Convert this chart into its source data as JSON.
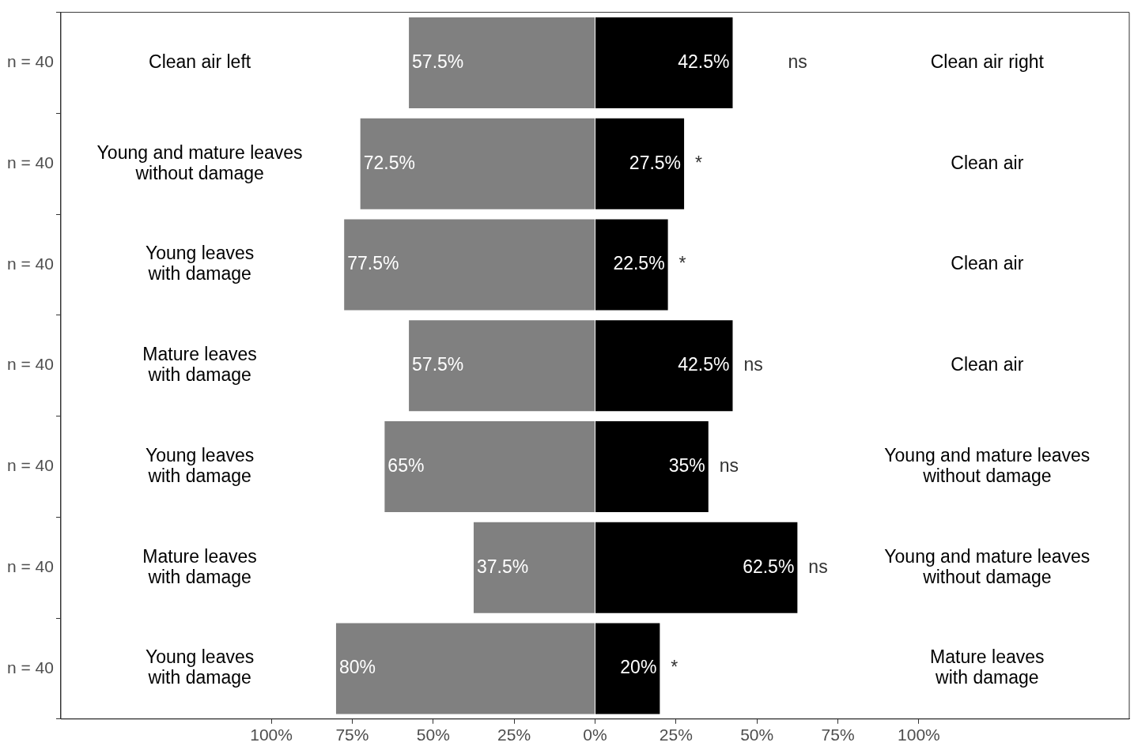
{
  "chart_data": {
    "type": "bar",
    "orientation": "horizontal",
    "grid": false,
    "categories": [
      "n = 40",
      "n = 40",
      "n = 40",
      "n = 40",
      "n = 40",
      "n = 40",
      "n = 40"
    ],
    "series": [
      {
        "color": "#808080",
        "values": [
          57.5,
          72.5,
          77.5,
          57.5,
          65,
          37.5,
          80
        ],
        "base": [
          -57.5,
          -72.5,
          -77.5,
          -57.5,
          -65,
          -37.5,
          -80
        ],
        "value_labels": [
          "57.5%",
          "72.5%",
          "77.5%",
          "57.5%",
          "65%",
          "37.5%",
          "80%"
        ]
      },
      {
        "color": "#000000",
        "values": [
          42.5,
          27.5,
          22.5,
          42.5,
          35,
          62.5,
          20
        ],
        "value_labels": [
          "42.5%",
          "27.5%",
          "22.5%",
          "42.5%",
          "35%",
          "62.5%",
          "20%"
        ]
      }
    ],
    "xlim": [
      -165,
      165
    ],
    "xticks": [
      {
        "value": -100,
        "label": "100%"
      },
      {
        "value": -75,
        "label": "75%"
      },
      {
        "value": -50,
        "label": "50%"
      },
      {
        "value": -25,
        "label": "25%"
      },
      {
        "value": 0,
        "label": "0%"
      },
      {
        "value": 25,
        "label": "25%"
      },
      {
        "value": 50,
        "label": "50%"
      },
      {
        "value": 75,
        "label": "75%"
      },
      {
        "value": 100,
        "label": "100%"
      }
    ],
    "annotations": [
      "Clean air left",
      "ns",
      "Clean air right",
      "Young and mature leaves\nwithout damage",
      "*",
      "Clean air",
      "Young leaves\nwith damage",
      "*",
      "Clean air",
      "Mature leaves\nwith damage",
      "ns",
      "Clean air",
      "Young leaves\nwith damage",
      "ns",
      "Young and mature leaves\nwithout damage",
      "Mature leaves\nwith damage",
      "ns",
      "Young and mature leaves\nwithout damage",
      "Young leaves\nwith damage",
      "*",
      "Mature leaves\nwith damage"
    ]
  }
}
